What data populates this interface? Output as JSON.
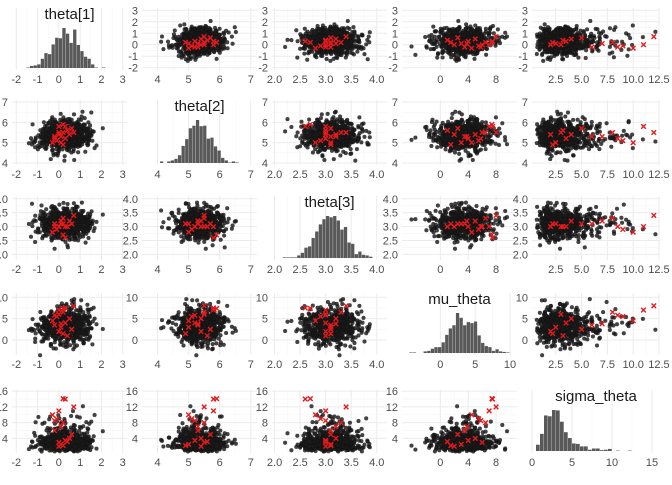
{
  "chart_data": {
    "type": "pairs",
    "parameters": [
      "theta[1]",
      "theta[2]",
      "theta[3]",
      "mu_theta",
      "sigma_theta"
    ],
    "colors": {
      "background": "#ffffff",
      "grid_major": "#ebebeb",
      "grid_minor": "#f5f5f5",
      "points": "#1a1a1a",
      "bars": "#595959",
      "divergent": "#e31a1c"
    },
    "marker_divergent": "x",
    "grid": true,
    "axes": [
      {
        "name": "theta[1]",
        "range": [
          -2.2,
          3.2
        ],
        "ticks": [
          -2,
          -1,
          0,
          1,
          2,
          3
        ],
        "tick_labels": [
          "-2",
          "-1",
          "0",
          "1",
          "2",
          "3"
        ],
        "row_range": [
          -2.2,
          3.2
        ],
        "row_ticks": [
          -2,
          -1,
          0,
          1,
          2,
          3
        ],
        "row_tick_labels": [
          "-2",
          "-1",
          "0",
          "1",
          "2",
          "3"
        ],
        "distribution": {
          "kind": "normal",
          "mean": 0.3,
          "sd": 0.6
        }
      },
      {
        "name": "theta[2]",
        "range": [
          3.5,
          7.2
        ],
        "ticks": [
          4,
          5,
          6,
          7
        ],
        "tick_labels": [
          "4",
          "5",
          "6",
          "7"
        ],
        "row_range": [
          3.9,
          7.1
        ],
        "row_ticks": [
          4,
          5,
          6,
          7
        ],
        "row_tick_labels": [
          "4",
          "5",
          "6",
          "7"
        ],
        "distribution": {
          "kind": "normal",
          "mean": 5.35,
          "sd": 0.4
        }
      },
      {
        "name": "theta[3]",
        "range": [
          1.95,
          4.2
        ],
        "ticks": [
          2.0,
          2.5,
          3.0,
          3.5,
          4.0
        ],
        "tick_labels": [
          "2.0",
          "2.5",
          "3.0",
          "3.5",
          "4.0"
        ],
        "row_range": [
          1.8,
          4.1
        ],
        "row_ticks": [
          2.0,
          2.5,
          3.0,
          3.5,
          4.0
        ],
        "row_tick_labels": [
          "2.0",
          "2.5",
          "3.0",
          "3.5",
          "4.0"
        ],
        "distribution": {
          "kind": "normal",
          "mean": 3.1,
          "sd": 0.28
        }
      },
      {
        "name": "mu_theta",
        "range": [
          -5.5,
          11
        ],
        "ticks": [
          0,
          4,
          8
        ],
        "tick_labels": [
          "0",
          "4",
          "8"
        ],
        "hist_ticks": [
          0,
          5,
          10
        ],
        "hist_tick_labels": [
          "0",
          "5",
          "10"
        ],
        "row_range": [
          -3.5,
          11
        ],
        "row_ticks": [
          0,
          5,
          10
        ],
        "row_tick_labels": [
          "0",
          "5",
          "10"
        ],
        "distribution": {
          "kind": "normal",
          "mean": 3.2,
          "sd": 2.1
        }
      },
      {
        "name": "sigma_theta",
        "range": [
          0.2,
          12.6
        ],
        "ticks": [
          2.5,
          5.0,
          7.5,
          10.0,
          12.5
        ],
        "tick_labels": [
          "2.5",
          "5.0",
          "7.5",
          "10.0",
          "12.5"
        ],
        "hist_range": [
          0,
          16
        ],
        "hist_ticks": [
          0,
          5,
          10,
          15
        ],
        "hist_tick_labels": [
          "0",
          "5",
          "10",
          "15"
        ],
        "row_range": [
          0.3,
          16.3
        ],
        "row_ticks": [
          4,
          8,
          12,
          16
        ],
        "row_tick_labels": [
          "4",
          "8",
          "12",
          "16"
        ],
        "distribution": {
          "kind": "lognormal",
          "median": 3.0,
          "sdlog": 0.5
        }
      }
    ],
    "divergent_points": [
      {
        "theta[1]": 0.3,
        "theta[2]": 5.8,
        "theta[3]": 2.6,
        "mu_theta": 7.5,
        "sigma_theta": 14.0
      },
      {
        "theta[1]": 0.2,
        "theta[2]": 5.9,
        "theta[3]": 2.7,
        "mu_theta": 7.4,
        "sigma_theta": 14.1
      },
      {
        "theta[1]": 0.0,
        "theta[2]": 5.5,
        "theta[3]": 3.0,
        "mu_theta": 6.0,
        "sigma_theta": 3.0
      },
      {
        "theta[1]": 0.0,
        "theta[2]": 5.4,
        "theta[3]": 3.0,
        "mu_theta": 2.0,
        "sigma_theta": 2.0
      },
      {
        "theta[1]": 0.1,
        "theta[2]": 5.0,
        "theta[3]": 3.1,
        "mu_theta": 3.0,
        "sigma_theta": 2.5
      },
      {
        "theta[1]": 0.3,
        "theta[2]": 5.2,
        "theta[3]": 3.0,
        "mu_theta": 4.0,
        "sigma_theta": 3.5
      },
      {
        "theta[1]": 0.5,
        "theta[2]": 5.4,
        "theta[3]": 3.2,
        "mu_theta": 5.0,
        "sigma_theta": 4.0
      },
      {
        "theta[1]": -0.2,
        "theta[2]": 5.3,
        "theta[3]": 3.1,
        "mu_theta": 3.5,
        "sigma_theta": 6.0
      },
      {
        "theta[1]": 0.4,
        "theta[2]": 5.6,
        "theta[3]": 3.0,
        "mu_theta": 1.0,
        "sigma_theta": 3.2
      },
      {
        "theta[1]": -0.1,
        "theta[2]": 5.1,
        "theta[3]": 2.9,
        "mu_theta": 5.5,
        "sigma_theta": 9.0
      },
      {
        "theta[1]": 0.2,
        "theta[2]": 5.5,
        "theta[3]": 3.3,
        "mu_theta": 6.5,
        "sigma_theta": 8.0
      },
      {
        "theta[1]": 0.6,
        "theta[2]": 5.7,
        "theta[3]": 3.1,
        "mu_theta": 2.5,
        "sigma_theta": 5.0
      },
      {
        "theta[1]": -0.3,
        "theta[2]": 5.0,
        "theta[3]": 2.8,
        "mu_theta": 4.5,
        "sigma_theta": 10.0
      },
      {
        "theta[1]": 0.1,
        "theta[2]": 5.3,
        "theta[3]": 3.2,
        "mu_theta": 3.8,
        "sigma_theta": 7.0
      },
      {
        "theta[1]": 0.0,
        "theta[2]": 5.8,
        "theta[3]": 3.0,
        "mu_theta": 7.0,
        "sigma_theta": 11.0
      },
      {
        "theta[1]": 0.2,
        "theta[2]": 4.9,
        "theta[3]": 3.1,
        "mu_theta": 1.5,
        "sigma_theta": 2.2
      },
      {
        "theta[1]": 0.7,
        "theta[2]": 5.5,
        "theta[3]": 3.4,
        "mu_theta": 8.0,
        "sigma_theta": 12.0
      },
      {
        "theta[1]": -0.2,
        "theta[2]": 5.2,
        "theta[3]": 3.0,
        "mu_theta": 5.8,
        "sigma_theta": 8.5
      }
    ]
  }
}
